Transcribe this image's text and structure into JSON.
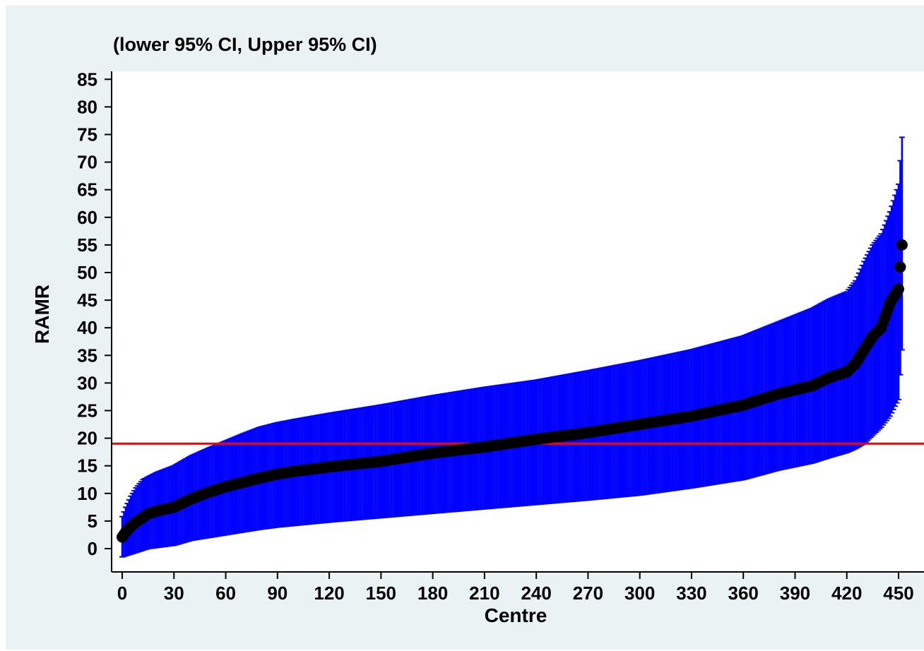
{
  "chart_data": {
    "type": "scatter",
    "title": "(lower 95% CI, Upper 95% CI)",
    "xlabel": "Centre",
    "ylabel": "RAMR",
    "xlim": [
      -4,
      458
    ],
    "ylim": [
      -4,
      88
    ],
    "x_ticks": [
      0,
      30,
      60,
      90,
      120,
      150,
      180,
      210,
      240,
      270,
      300,
      330,
      360,
      390,
      420,
      450
    ],
    "y_ticks": [
      0,
      5,
      10,
      15,
      20,
      25,
      30,
      35,
      40,
      45,
      50,
      55,
      60,
      65,
      70,
      75,
      80,
      85
    ],
    "reference_line": {
      "y": 19,
      "color": "#ff0000"
    },
    "n_centres": 453,
    "ci_color": "#0000ff",
    "point_color": "#000000",
    "grid": false,
    "series": [
      {
        "role": "point_estimate",
        "x": [
          0,
          2,
          5,
          8,
          12,
          15,
          20,
          30,
          40,
          50,
          60,
          70,
          80,
          90,
          100,
          120,
          150,
          180,
          210,
          240,
          270,
          300,
          330,
          360,
          380,
          400,
          410,
          420,
          425,
          430,
          435,
          440,
          445,
          450,
          452
        ],
        "y": [
          2.1,
          3.0,
          4.0,
          4.8,
          5.6,
          6.3,
          6.8,
          7.5,
          9.0,
          10.2,
          11.2,
          12.0,
          12.8,
          13.5,
          14.0,
          14.8,
          15.8,
          17.3,
          18.4,
          19.8,
          21.0,
          22.5,
          24.0,
          26.0,
          28.0,
          29.5,
          31.0,
          32.0,
          33.5,
          36.0,
          38.5,
          40.0,
          44.5,
          47.0,
          55.0
        ]
      },
      {
        "role": "lower_95_ci",
        "x": [
          0,
          2,
          5,
          8,
          12,
          15,
          20,
          30,
          40,
          50,
          60,
          70,
          80,
          90,
          100,
          120,
          150,
          180,
          210,
          240,
          270,
          300,
          330,
          360,
          380,
          400,
          410,
          420,
          425,
          430,
          435,
          440,
          445,
          450,
          452
        ],
        "y": [
          -1.5,
          -1.3,
          -1.0,
          -0.7,
          -0.3,
          0.0,
          0.2,
          0.6,
          1.5,
          2.0,
          2.5,
          3.0,
          3.5,
          3.9,
          4.2,
          4.8,
          5.6,
          6.4,
          7.2,
          8.0,
          8.8,
          9.7,
          11.0,
          12.5,
          14.2,
          15.5,
          16.5,
          17.4,
          18.1,
          19.0,
          20.5,
          22.0,
          24.0,
          27.0,
          36.0
        ]
      },
      {
        "role": "upper_95_ci",
        "x": [
          0,
          2,
          5,
          8,
          12,
          15,
          20,
          30,
          40,
          50,
          60,
          70,
          80,
          90,
          100,
          120,
          150,
          180,
          210,
          240,
          270,
          300,
          330,
          360,
          380,
          400,
          410,
          420,
          425,
          430,
          435,
          440,
          445,
          450,
          452
        ],
        "y": [
          5.8,
          7.5,
          9.5,
          11.0,
          12.5,
          13.0,
          13.8,
          15.0,
          16.8,
          18.2,
          19.5,
          20.8,
          22.0,
          22.8,
          23.4,
          24.5,
          26.0,
          27.7,
          29.2,
          30.5,
          32.2,
          34.0,
          36.0,
          38.5,
          41.0,
          43.5,
          45.2,
          46.5,
          48.5,
          52.0,
          55.0,
          57.0,
          61.0,
          66.0,
          74.5
        ]
      }
    ]
  }
}
